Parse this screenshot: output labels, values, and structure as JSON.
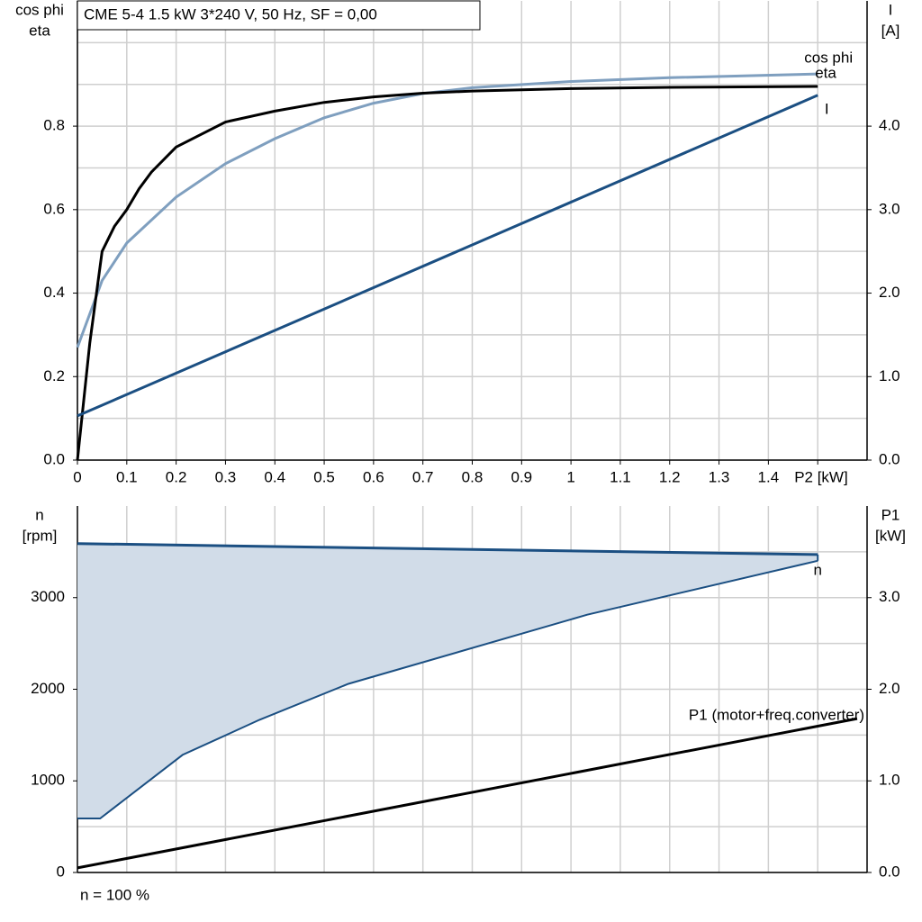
{
  "chart_data": [
    {
      "type": "line",
      "title": "CME 5-4   1.5 kW   3*240 V, 50 Hz, SF = 0,00",
      "ylabel_lines": [
        "cos phi",
        "eta"
      ],
      "y2label_lines": [
        "I",
        "[A]"
      ],
      "xlim": [
        0,
        1.6
      ],
      "xticks": [
        0,
        0.1,
        0.2,
        0.3,
        0.4,
        0.5,
        0.6,
        0.7,
        0.8,
        0.9,
        1.0,
        1.1,
        1.2,
        1.3,
        1.4,
        {
          "value": 1.5,
          "label": "P2 [kW]"
        }
      ],
      "ylim": [
        0,
        1.1
      ],
      "yticks": [
        {
          "value": 0,
          "label": "0.0"
        },
        0.2,
        0.4,
        0.6,
        0.8
      ],
      "ygrid": [
        0.1,
        0.3,
        0.5,
        0.7,
        0.9,
        1.0
      ],
      "y2lim": [
        0,
        5.5
      ],
      "y2ticks": [
        {
          "value": 0,
          "label": "0.0"
        },
        {
          "value": 1,
          "label": "1.0"
        },
        {
          "value": 2,
          "label": "2.0"
        },
        {
          "value": 3,
          "label": "3.0"
        },
        {
          "value": 4,
          "label": "4.0"
        }
      ],
      "series": [
        {
          "name": "cos phi",
          "color": "#7f9fbf",
          "x": [
            0,
            0.05,
            0.1,
            0.2,
            0.3,
            0.4,
            0.5,
            0.6,
            0.7,
            0.8,
            1.0,
            1.2,
            1.5
          ],
          "values": [
            0.27,
            0.43,
            0.52,
            0.63,
            0.71,
            0.77,
            0.82,
            0.855,
            0.878,
            0.892,
            0.907,
            0.916,
            0.925
          ]
        },
        {
          "name": "eta",
          "color": "#000000",
          "x": [
            0,
            0.025,
            0.05,
            0.075,
            0.1,
            0.125,
            0.15,
            0.2,
            0.3,
            0.4,
            0.5,
            0.6,
            0.7,
            0.8,
            1.0,
            1.2,
            1.5
          ],
          "values": [
            0,
            0.28,
            0.5,
            0.56,
            0.6,
            0.65,
            0.69,
            0.75,
            0.81,
            0.836,
            0.857,
            0.87,
            0.879,
            0.884,
            0.89,
            0.893,
            0.895
          ]
        },
        {
          "name": "I",
          "color": "#1b4f82",
          "axis": "y2",
          "x": [
            0,
            1.5
          ],
          "values": [
            0.53,
            4.37
          ]
        }
      ]
    },
    {
      "type": "line",
      "ylabel_lines": [
        "n",
        "[rpm]"
      ],
      "y2label_lines": [
        "P1",
        "[kW]"
      ],
      "note": "n = 100 %",
      "xlim": [
        0,
        1.6
      ],
      "xgrid": [
        0.1,
        0.2,
        0.3,
        0.4,
        0.5,
        0.6,
        0.7,
        0.8,
        0.9,
        1.0,
        1.1,
        1.2,
        1.3,
        1.4,
        1.5
      ],
      "ylim": [
        0,
        4000
      ],
      "yticks": [
        0,
        1000,
        2000,
        3000
      ],
      "ygrid": [
        500,
        1500,
        2500,
        3500
      ],
      "y2lim": [
        0,
        4
      ],
      "y2ticks": [
        {
          "value": 0,
          "label": "0.0"
        },
        {
          "value": 1,
          "label": "1.0"
        },
        {
          "value": 2,
          "label": "2.0"
        },
        {
          "value": 3,
          "label": "3.0"
        }
      ],
      "series": [
        {
          "name": "n",
          "color": "#1b4f82",
          "fill": "#d1dce8",
          "x": [
            0,
            1.5
          ],
          "values": [
            3590,
            3470
          ],
          "min_x": [
            0,
            0.046,
            0.213,
            0.369,
            0.549,
            1.033,
            1.5
          ],
          "min_values": [
            590,
            590,
            1284,
            1667,
            2059,
            2814,
            3402
          ]
        },
        {
          "name": "P1 (motor+freq.converter)",
          "color": "#000000",
          "axis": "y2",
          "x": [
            0,
            1.58
          ],
          "values": [
            0.05,
            1.68
          ]
        }
      ]
    }
  ]
}
